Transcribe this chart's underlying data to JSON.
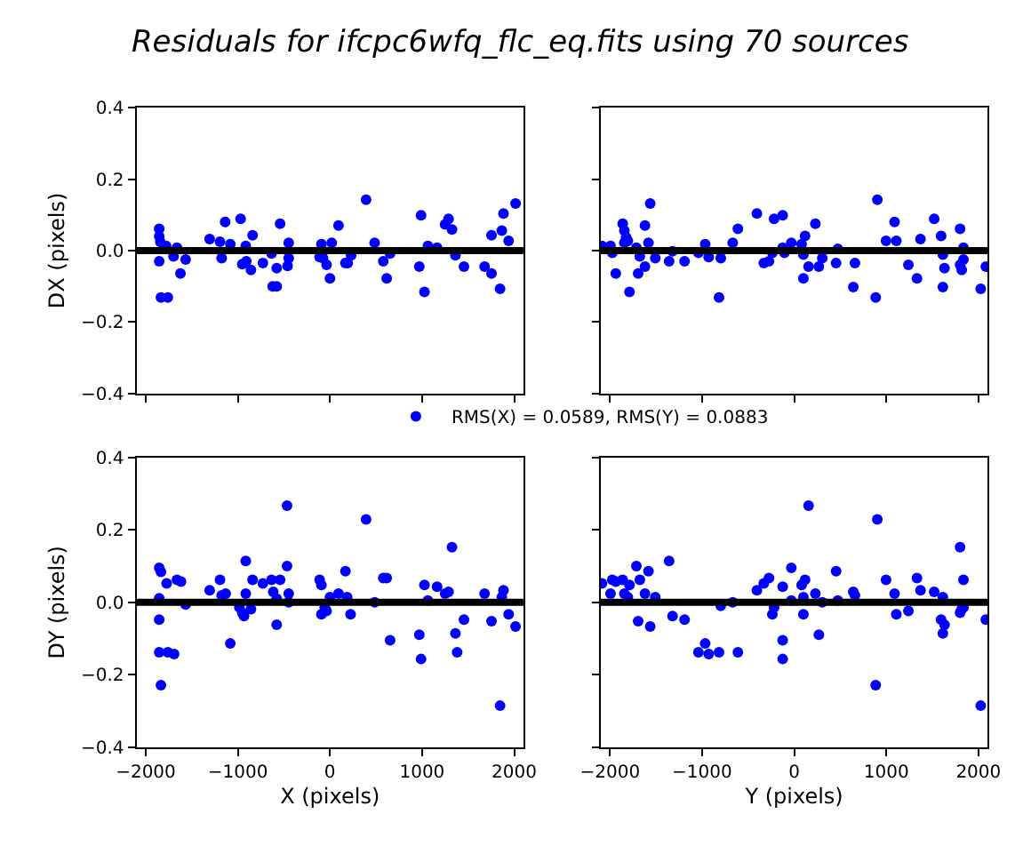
{
  "chart_data": [
    {
      "type": "scatter",
      "title": "Residuals for ifcpc6wfq_flc_eq.fits using 70 sources",
      "ylabel": "DX (pixels)",
      "marker": "circle",
      "legend": "bottom",
      "tick_labels": "y",
      "xlim": [
        -2100,
        2100
      ],
      "xticks": [
        {
          "value": -2000,
          "label": null
        },
        {
          "value": -1000,
          "label": null
        },
        {
          "value": 0,
          "label": null
        },
        {
          "value": 1000,
          "label": null
        },
        {
          "value": 2000,
          "label": null
        }
      ],
      "ylim": [
        -0.4,
        0.4
      ],
      "yticks": [
        {
          "value": -0.4,
          "label": "−0.4"
        },
        {
          "value": -0.2,
          "label": "−0.2"
        },
        {
          "value": 0,
          "label": "0.0"
        },
        {
          "value": 0.2,
          "label": "0.2"
        },
        {
          "value": 0.4,
          "label": "0.4"
        }
      ],
      "ref_lines": [
        {
          "axis": "y",
          "value": 0,
          "color": "#000000"
        }
      ],
      "series": [
        {
          "name": "RMS(X) = 0.0589, RMS(Y) = 0.0883",
          "color": "#0000ff",
          "x": [
            -1854,
            -1854,
            -1841,
            -1779,
            -1854,
            -1835,
            -1760,
            -1698,
            -1661,
            -1623,
            -1567,
            -1306,
            -1194,
            -1176,
            -1138,
            -1082,
            -970,
            -952,
            -914,
            -908,
            -858,
            -840,
            -728,
            -634,
            -622,
            -578,
            -578,
            -541,
            -460,
            -448,
            -448,
            -93,
            -112,
            -75,
            -37,
            0,
            19,
            93,
            168,
            193,
            230,
            392,
            485,
            579,
            616,
            653,
            970,
            989,
            1026,
            1063,
            1163,
            1250,
            1288,
            1325,
            1362,
            1455,
            1679,
            1754,
            1754,
            1847,
            1866,
            1884,
            1940,
            2015
          ],
          "values": [
            0.061,
            0.04,
            0.024,
            0.013,
            -0.03,
            -0.131,
            -0.131,
            -0.016,
            0.008,
            -0.064,
            -0.025,
            0.032,
            0.025,
            -0.021,
            0.08,
            0.018,
            0.089,
            -0.038,
            0.013,
            -0.03,
            -0.054,
            0.043,
            -0.035,
            -0.008,
            -0.1,
            -0.1,
            -0.049,
            0.075,
            -0.043,
            -0.021,
            0.022,
            0.018,
            -0.018,
            -0.021,
            -0.04,
            -0.078,
            0.022,
            0.07,
            -0.035,
            -0.035,
            -0.013,
            0.142,
            0.022,
            -0.03,
            -0.078,
            -0.008,
            -0.045,
            0.099,
            -0.116,
            0.013,
            0.008,
            0.073,
            0.089,
            0.059,
            -0.013,
            -0.045,
            -0.045,
            0.043,
            -0.064,
            -0.107,
            0.056,
            0.104,
            0.027,
            0.132
          ]
        }
      ]
    },
    {
      "type": "scatter",
      "marker": "circle",
      "tick_labels": false,
      "xlim": [
        -2100,
        2100
      ],
      "xticks": [
        {
          "value": -2000,
          "label": null
        },
        {
          "value": -1000,
          "label": null
        },
        {
          "value": 0,
          "label": null
        },
        {
          "value": 1000,
          "label": null
        },
        {
          "value": 2000,
          "label": null
        }
      ],
      "ylim": [
        -0.4,
        0.4
      ],
      "yticks": [
        {
          "value": -0.4,
          "label": null
        },
        {
          "value": -0.2,
          "label": null
        },
        {
          "value": 0,
          "label": null
        },
        {
          "value": 0.2,
          "label": null
        },
        {
          "value": 0.4,
          "label": null
        }
      ],
      "ref_lines": [
        {
          "axis": "y",
          "value": 0,
          "color": "#000000"
        }
      ],
      "series": [
        {
          "color": "#0000ff",
          "x": [
            -2087,
            -1994,
            -1975,
            -1937,
            -1862,
            -1844,
            -1825,
            -1806,
            -1844,
            -1788,
            -1713,
            -1694,
            -1676,
            -1620,
            -1620,
            -1582,
            -1563,
            -1508,
            -1358,
            -1321,
            -1190,
            -1040,
            -966,
            -928,
            -816,
            -797,
            -667,
            -611,
            -405,
            -330,
            -274,
            -237,
            -218,
            -125,
            -125,
            -106,
            -31,
            81,
            100,
            100,
            118,
            156,
            230,
            268,
            305,
            455,
            474,
            642,
            660,
            885,
            903,
            997,
            1090,
            1109,
            1240,
            1333,
            1371,
            1520,
            1595,
            1614,
            1614,
            1632,
            1801,
            1801,
            1819,
            1838,
            1838,
            2025,
            2081
          ],
          "values": [
            0.013,
            0.013,
            -0.006,
            -0.064,
            0.075,
            0.056,
            0.037,
            0.027,
            0.022,
            -0.116,
            0.008,
            -0.064,
            -0.016,
            0.07,
            -0.045,
            0.022,
            0.132,
            -0.021,
            -0.03,
            -0.002,
            -0.03,
            -0.006,
            0.018,
            -0.018,
            -0.131,
            -0.021,
            0.022,
            0.061,
            0.104,
            -0.035,
            -0.03,
            -0.006,
            0.089,
            0.099,
            0.008,
            -0.006,
            0.022,
            0.018,
            -0.078,
            -0.011,
            0.041,
            -0.045,
            0.075,
            -0.045,
            -0.021,
            -0.035,
            0.005,
            -0.102,
            -0.035,
            -0.131,
            0.142,
            0.027,
            0.08,
            0.027,
            -0.04,
            -0.078,
            0.032,
            0.089,
            0.041,
            -0.011,
            -0.102,
            -0.049,
            0.061,
            -0.04,
            -0.054,
            0.008,
            -0.025,
            -0.107,
            -0.045
          ]
        }
      ]
    },
    {
      "type": "scatter",
      "xlabel": "X (pixels)",
      "ylabel": "DY (pixels)",
      "marker": "circle",
      "xlim": [
        -2100,
        2100
      ],
      "xticks": [
        {
          "value": -2000,
          "label": "−2000"
        },
        {
          "value": -1000,
          "label": "−1000"
        },
        0,
        1000,
        2000
      ],
      "ylim": [
        -0.4,
        0.4
      ],
      "yticks": [
        {
          "value": -0.4,
          "label": "−0.4"
        },
        {
          "value": -0.2,
          "label": "−0.2"
        },
        {
          "value": 0,
          "label": "0.0"
        },
        {
          "value": 0.2,
          "label": "0.2"
        },
        {
          "value": 0.4,
          "label": "0.4"
        }
      ],
      "ref_lines": [
        {
          "axis": "y",
          "value": 0,
          "color": "#000000"
        }
      ],
      "series": [
        {
          "color": "#0000ff",
          "x": [
            -1854,
            -1835,
            -1773,
            -1854,
            -1854,
            -1854,
            -1760,
            -1692,
            -1835,
            -1661,
            -1617,
            -1567,
            -1306,
            -1194,
            -1176,
            -1132,
            -1082,
            -983,
            -952,
            -933,
            -914,
            -914,
            -858,
            -840,
            -728,
            -634,
            -616,
            -578,
            -578,
            -541,
            -466,
            -466,
            -448,
            -448,
            -112,
            -93,
            -93,
            -56,
            -37,
            0,
            93,
            168,
            187,
            224,
            392,
            485,
            579,
            616,
            653,
            970,
            989,
            1026,
            1063,
            1163,
            1250,
            1288,
            1325,
            1362,
            1381,
            1455,
            1679,
            1754,
            1847,
            1866,
            1884,
            1940,
            2015
          ],
          "values": [
            0.095,
            0.084,
            0.052,
            0.011,
            -0.048,
            -0.138,
            -0.138,
            -0.143,
            -0.229,
            0.062,
            0.057,
            -0.006,
            0.033,
            0.062,
            0.019,
            0.024,
            -0.114,
            -0.014,
            -0.029,
            -0.038,
            0.114,
            0.024,
            -0.019,
            0.062,
            0.052,
            0.062,
            0.029,
            0.01,
            -0.062,
            0.062,
            0.267,
            0.1,
            0.024,
            0.0,
            0.062,
            0.048,
            -0.033,
            -0.014,
            -0.024,
            0.014,
            0.024,
            0.086,
            0.014,
            -0.033,
            0.229,
            0.0,
            0.067,
            0.067,
            -0.105,
            -0.09,
            -0.157,
            0.048,
            0.005,
            0.043,
            0.024,
            0.029,
            0.152,
            -0.086,
            -0.138,
            -0.048,
            0.024,
            -0.052,
            -0.286,
            0.014,
            0.033,
            -0.033,
            -0.067
          ]
        }
      ]
    },
    {
      "type": "scatter",
      "xlabel": "Y (pixels)",
      "marker": "circle",
      "tick_labels": "x",
      "xlim": [
        -2100,
        2100
      ],
      "xticks": [
        {
          "value": -2000,
          "label": "−2000"
        },
        {
          "value": -1000,
          "label": "−1000"
        },
        0,
        1000,
        2000
      ],
      "ylim": [
        -0.4,
        0.4
      ],
      "yticks": [
        {
          "value": -0.4,
          "label": null
        },
        {
          "value": -0.2,
          "label": null
        },
        {
          "value": 0,
          "label": null
        },
        {
          "value": 0.2,
          "label": null
        },
        {
          "value": 0.4,
          "label": null
        }
      ],
      "ref_lines": [
        {
          "axis": "y",
          "value": 0,
          "color": "#000000"
        }
      ],
      "series": [
        {
          "color": "#0000ff",
          "x": [
            -2087,
            -1994,
            -1975,
            -1937,
            -1862,
            -1844,
            -1806,
            -1788,
            -1713,
            -1694,
            -1676,
            -1620,
            -1582,
            -1563,
            -1508,
            -1358,
            -1321,
            -1190,
            -1040,
            -966,
            -928,
            -816,
            -797,
            -667,
            -611,
            -405,
            -330,
            -274,
            -237,
            -218,
            -125,
            -125,
            -125,
            -31,
            -31,
            81,
            100,
            100,
            118,
            156,
            230,
            268,
            305,
            455,
            474,
            642,
            660,
            885,
            903,
            997,
            1090,
            1109,
            1240,
            1333,
            1371,
            1520,
            1595,
            1614,
            1614,
            1632,
            1801,
            1801,
            1819,
            1838,
            1838,
            2025,
            2081
          ],
          "values": [
            0.052,
            0.024,
            0.062,
            0.057,
            0.062,
            0.024,
            0.014,
            0.048,
            0.1,
            -0.052,
            0.062,
            0.024,
            0.086,
            -0.067,
            0.014,
            0.114,
            -0.038,
            -0.048,
            -0.138,
            -0.114,
            -0.143,
            -0.138,
            -0.01,
            0.0,
            -0.138,
            0.033,
            0.052,
            0.067,
            -0.033,
            -0.014,
            0.043,
            -0.105,
            -0.157,
            0.095,
            0.005,
            0.048,
            -0.033,
            0.014,
            0.062,
            0.267,
            0.024,
            -0.09,
            0.0,
            0.086,
            0.005,
            0.029,
            0.019,
            -0.229,
            0.229,
            0.062,
            0.024,
            -0.033,
            -0.024,
            0.067,
            0.033,
            0.029,
            -0.048,
            0.014,
            -0.086,
            -0.062,
            0.152,
            -0.029,
            -0.019,
            0.062,
            -0.014,
            -0.286,
            -0.048
          ]
        }
      ]
    }
  ]
}
